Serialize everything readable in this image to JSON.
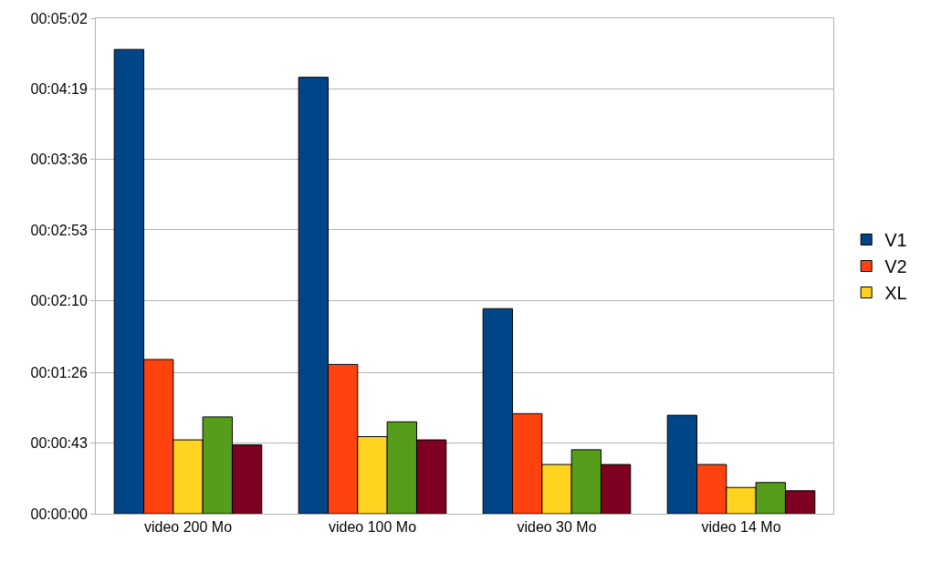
{
  "chart_data": {
    "type": "bar",
    "categories": [
      "video 200 Mo",
      "video 100 Mo",
      "video 30 Mo",
      "video 14 Mo"
    ],
    "series": [
      {
        "name": "V1",
        "color": "#004586",
        "values": [
          283,
          266,
          125,
          60
        ]
      },
      {
        "name": "V2",
        "color": "#ff420e",
        "values": [
          94,
          91,
          61,
          30
        ]
      },
      {
        "name": "XL",
        "color": "#ffd320",
        "values": [
          45,
          47,
          30,
          16
        ]
      },
      {
        "color": "#579d1c",
        "values": [
          59,
          56,
          39,
          19
        ]
      },
      {
        "color": "#7e0021",
        "values": [
          42,
          45,
          30,
          14
        ]
      }
    ],
    "ylim": [
      0,
      302
    ],
    "yticks": [
      {
        "value": 0,
        "label": "00:00:00"
      },
      {
        "value": 43,
        "label": "00:00:43"
      },
      {
        "value": 86,
        "label": "00:01:26"
      },
      {
        "value": 130,
        "label": "00:02:10"
      },
      {
        "value": 173,
        "label": "00:02:53"
      },
      {
        "value": 216,
        "label": "00:03:36"
      },
      {
        "value": 259,
        "label": "00:04:19"
      },
      {
        "value": 302,
        "label": "00:05:02"
      }
    ],
    "grid": "y",
    "legend": "right"
  }
}
